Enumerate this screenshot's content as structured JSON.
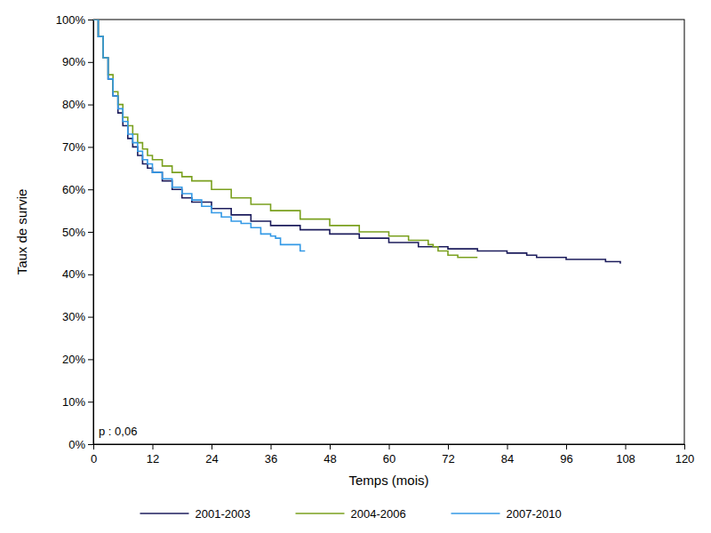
{
  "chart_data": {
    "type": "line",
    "x_label": "Temps (mois)",
    "y_label": "Taux de survie",
    "annotation": "p : 0,06",
    "line_style": "step",
    "grid": false,
    "legend": "bottom",
    "xlim": [
      0,
      120
    ],
    "xticks": [
      0,
      12,
      24,
      36,
      48,
      60,
      72,
      84,
      96,
      108,
      120
    ],
    "ylim": [
      0,
      100
    ],
    "yticks": [
      {
        "value": 0,
        "label": "0%"
      },
      {
        "value": 10,
        "label": "10%"
      },
      {
        "value": 20,
        "label": "20%"
      },
      {
        "value": 30,
        "label": "30%"
      },
      {
        "value": 40,
        "label": "40%"
      },
      {
        "value": 50,
        "label": "50%"
      },
      {
        "value": 60,
        "label": "60%"
      },
      {
        "value": 70,
        "label": "70%"
      },
      {
        "value": 80,
        "label": "80%"
      },
      {
        "value": 90,
        "label": "90%"
      },
      {
        "value": 100,
        "label": "100%"
      }
    ],
    "series": [
      {
        "name": "2001-2003",
        "color": "#1c1c5c",
        "x": [
          0,
          1,
          2,
          3,
          4,
          5,
          6,
          7,
          8,
          9,
          10,
          11,
          12,
          14,
          16,
          18,
          20,
          24,
          28,
          32,
          36,
          42,
          48,
          54,
          60,
          66,
          72,
          78,
          84,
          88,
          90,
          96,
          100,
          104,
          107
        ],
        "values": [
          100,
          96,
          91,
          86,
          82,
          78,
          75,
          72,
          70,
          68,
          66,
          65,
          64,
          62,
          60,
          58,
          57,
          55.5,
          54,
          52.5,
          51.5,
          50.5,
          49.5,
          48.5,
          47.5,
          46.5,
          46,
          45.5,
          45,
          44.5,
          44,
          43.5,
          43.5,
          43,
          42.5
        ]
      },
      {
        "name": "2004-2006",
        "color": "#7aa01e",
        "x": [
          0,
          1,
          2,
          3,
          4,
          5,
          6,
          7,
          8,
          9,
          10,
          11,
          12,
          14,
          16,
          18,
          20,
          24,
          28,
          32,
          36,
          42,
          48,
          54,
          60,
          64,
          68,
          69,
          70,
          72,
          74,
          78
        ],
        "values": [
          100,
          96,
          91,
          87,
          83,
          80,
          77,
          75,
          73,
          71,
          69.5,
          68,
          67,
          65.5,
          64,
          63,
          62,
          60,
          58,
          56.5,
          55,
          53,
          51.5,
          50,
          49,
          48,
          47,
          46.5,
          45.5,
          44.5,
          44,
          44
        ]
      },
      {
        "name": "2007-2010",
        "color": "#3399e6",
        "x": [
          0,
          1,
          2,
          3,
          4,
          5,
          6,
          7,
          8,
          9,
          10,
          11,
          12,
          14,
          16,
          18,
          20,
          22,
          24,
          26,
          28,
          30,
          32,
          34,
          36,
          37,
          38,
          40,
          42,
          43
        ],
        "values": [
          100,
          96,
          91,
          86,
          82,
          79,
          76,
          73,
          71,
          69,
          67,
          66,
          64,
          62.5,
          60.5,
          59,
          57.5,
          56,
          54.5,
          53.5,
          52.5,
          52,
          51,
          49.5,
          49,
          48.5,
          47,
          47,
          45.5,
          45.5
        ]
      }
    ]
  }
}
